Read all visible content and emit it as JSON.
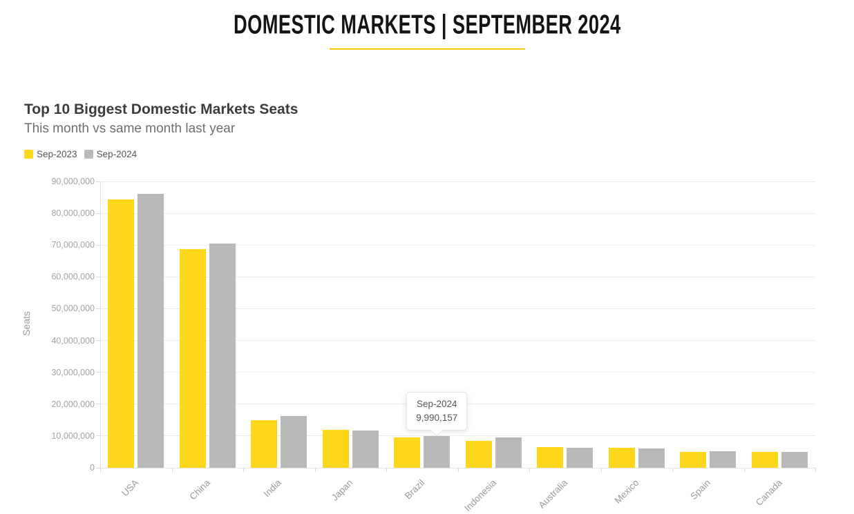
{
  "page_title": "DOMESTIC MARKETS | SEPTEMBER 2024",
  "chart_header": {
    "title": "Top 10 Biggest Domestic Markets Seats",
    "subtitle": "This month vs same month last year"
  },
  "legend": [
    {
      "label": "Sep-2023",
      "color": "#FDD71C"
    },
    {
      "label": "Sep-2024",
      "color": "#B9B9B9"
    }
  ],
  "tooltip": {
    "title": "Sep-2024",
    "value": "9,990,157",
    "target_category": "Brazil",
    "target_series": "Sep-2024"
  },
  "colors": {
    "accent_yellow": "#FDD71C",
    "bar_gray": "#B9B9B9",
    "title_underline": "#F2C500"
  },
  "chart_data": {
    "type": "bar",
    "categories": [
      "USA",
      "China",
      "India",
      "Japan",
      "Brazil",
      "Indonesia",
      "Australia",
      "Mexico",
      "Spain",
      "Canada"
    ],
    "series": [
      {
        "name": "Sep-2023",
        "color": "#FDD71C",
        "values": [
          84300000,
          68800000,
          15000000,
          12000000,
          9600000,
          8400000,
          6400000,
          6300000,
          4900000,
          5000000
        ]
      },
      {
        "name": "Sep-2024",
        "color": "#B9B9B9",
        "values": [
          86200000,
          70500000,
          16300000,
          11800000,
          9990157,
          9500000,
          6200000,
          6000000,
          5200000,
          5000000
        ]
      }
    ],
    "title": "Top 10 Biggest Domestic Markets Seats",
    "subtitle": "This month vs same month last year",
    "xlabel": "",
    "ylabel": "Seats",
    "ylim": [
      0,
      90000000
    ],
    "ytick_interval": 10000000,
    "ytick_labels": [
      "0",
      "10,000,000",
      "20,000,000",
      "30,000,000",
      "40,000,000",
      "50,000,000",
      "60,000,000",
      "70,000,000",
      "80,000,000",
      "90,000,000"
    ],
    "grid": true,
    "legend_position": "top-left"
  }
}
